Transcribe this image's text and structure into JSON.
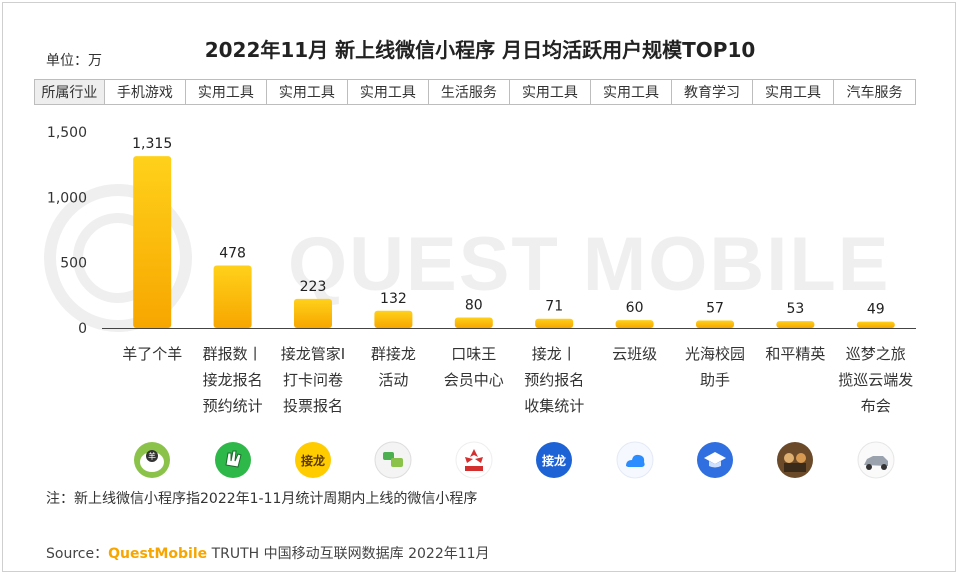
{
  "title": "2022年11月 新上线微信小程序 月日均活跃用户规模TOP10",
  "unit_label": "单位：万",
  "industry_header": "所属行业",
  "industries": [
    "手机游戏",
    "实用工具",
    "实用工具",
    "实用工具",
    "生活服务",
    "实用工具",
    "实用工具",
    "教育学习",
    "实用工具",
    "汽车服务"
  ],
  "watermark": "QUEST MOBILE",
  "note": "注：新上线微信小程序指2022年1-11月统计周期内上线的微信小程序",
  "source": {
    "prefix": "Source：",
    "brand": "QuestMobile",
    "rest": " TRUTH 中国移动互联网数据库 2022年11月"
  },
  "colors": {
    "bar_top": "#ffd11a",
    "bar_bottom": "#f7a600",
    "brand": "#f7a600"
  },
  "icons": [
    "sheep-icon",
    "hand-icon",
    "jielong-icon",
    "chat-icon",
    "kouweiwang-icon",
    "jielong-blue-icon",
    "cloud-icon",
    "graduation-cap-icon",
    "game-characters-icon",
    "car-icon"
  ],
  "chart_data": {
    "type": "bar",
    "categories": [
      [
        "羊了个羊"
      ],
      [
        "群报数丨",
        "接龙报名",
        "预约统计"
      ],
      [
        "接龙管家I",
        "打卡问卷",
        "投票报名"
      ],
      [
        "群接龙",
        "活动"
      ],
      [
        "口味王",
        "会员中心"
      ],
      [
        "接龙丨",
        "预约报名",
        "收集统计"
      ],
      [
        "云班级"
      ],
      [
        "光海校园",
        "助手"
      ],
      [
        "和平精英"
      ],
      [
        "巡梦之旅",
        "揽巡云端发",
        "布会"
      ]
    ],
    "values": [
      1315,
      478,
      223,
      132,
      80,
      71,
      60,
      57,
      53,
      49
    ],
    "value_labels": [
      "1,315",
      "478",
      "223",
      "132",
      "80",
      "71",
      "60",
      "57",
      "53",
      "49"
    ],
    "yticks": [
      "0",
      "500",
      "1,000",
      "1,500"
    ],
    "ytick_values": [
      0,
      500,
      1000,
      1500
    ],
    "ylim": [
      0,
      1500
    ],
    "xlabel": "",
    "ylabel": "",
    "grid": false
  }
}
